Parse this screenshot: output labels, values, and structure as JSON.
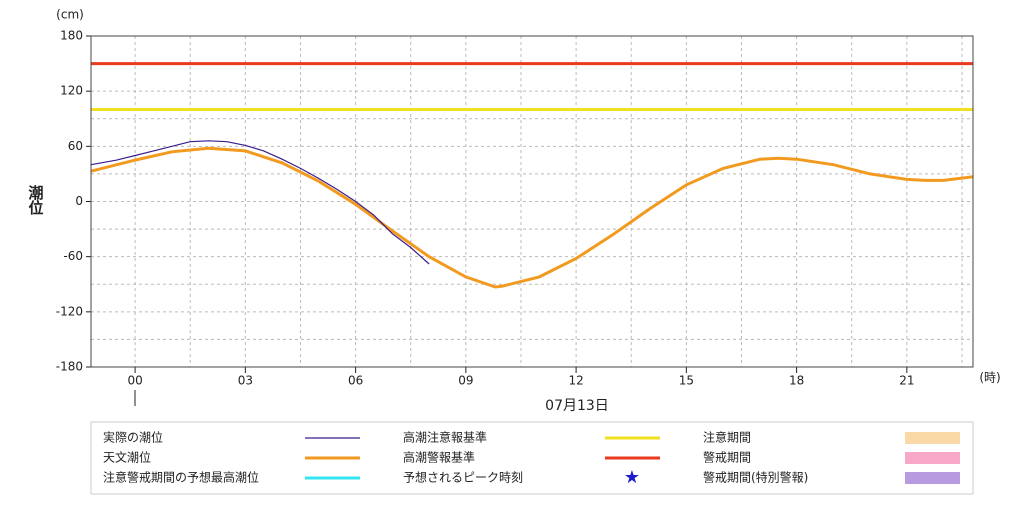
{
  "chart_data": {
    "type": "line",
    "y_unit": "(cm)",
    "x_unit": "(時)",
    "ylabel": "潮位",
    "date_label": "07月13日",
    "xlim": [
      -1.2,
      22.8
    ],
    "ylim": [
      -180,
      180
    ],
    "xticks": [
      {
        "value": 0,
        "label": "00"
      },
      {
        "value": 3,
        "label": "03"
      },
      {
        "value": 6,
        "label": "06"
      },
      {
        "value": 9,
        "label": "09"
      },
      {
        "value": 12,
        "label": "12"
      },
      {
        "value": 15,
        "label": "15"
      },
      {
        "value": 18,
        "label": "18"
      },
      {
        "value": 21,
        "label": "21"
      }
    ],
    "x_minor_grid": [
      1.5,
      4.5,
      7.5,
      10.5,
      13.5,
      16.5,
      19.5,
      22.5
    ],
    "yticks": [
      -180,
      -120,
      -60,
      0,
      60,
      120,
      180
    ],
    "y_minor_grid": [
      -150,
      -90,
      -30,
      30,
      90,
      150
    ],
    "grid": true,
    "series": [
      {
        "name": "実際の潮位",
        "color": "#3b1e8c",
        "width": 1.2,
        "x": [
          -1.2,
          -0.5,
          0,
          0.5,
          1,
          1.5,
          2,
          2.5,
          3,
          3.5,
          4,
          4.5,
          5,
          5.5,
          6,
          6.5,
          7,
          7.5,
          8
        ],
        "values": [
          40,
          45,
          50,
          55,
          60,
          65,
          66,
          65,
          61,
          55,
          46,
          36,
          25,
          13,
          0,
          -15,
          -35,
          -50,
          -68
        ]
      },
      {
        "name": "天文潮位",
        "color": "#f29a1f",
        "width": 3,
        "x": [
          -1.2,
          0,
          1,
          2,
          3,
          4,
          5,
          6,
          7,
          8,
          9,
          9.8,
          10,
          11,
          12,
          13,
          14,
          15,
          16,
          17,
          17.5,
          18,
          19,
          20,
          21,
          21.5,
          22,
          22.8
        ],
        "values": [
          33,
          45,
          54,
          58,
          55,
          42,
          22,
          -3,
          -32,
          -60,
          -82,
          -93,
          -92,
          -82,
          -62,
          -36,
          -8,
          18,
          36,
          46,
          47,
          46,
          40,
          30,
          24,
          23,
          23,
          27
        ]
      }
    ],
    "thresholds": [
      {
        "name": "高潮注意報基準",
        "color": "#f0e020",
        "value": 100
      },
      {
        "name": "高潮警報基準",
        "color": "#e83a1c",
        "value": 150
      }
    ],
    "legend_extra": [
      {
        "name": "注意警戒期間の予想最高潮位",
        "color": "#33e6f0",
        "marker": "line"
      },
      {
        "name": "予想されるピーク時刻",
        "color": "#1c1ccc",
        "marker": "star"
      },
      {
        "name": "注意期間",
        "color": "#fbd9a6",
        "marker": "rect"
      },
      {
        "name": "警戒期間",
        "color": "#f7a8c8",
        "marker": "rect"
      },
      {
        "name": "警戒期間(特別警報)",
        "color": "#b79ae0",
        "marker": "rect"
      }
    ]
  }
}
